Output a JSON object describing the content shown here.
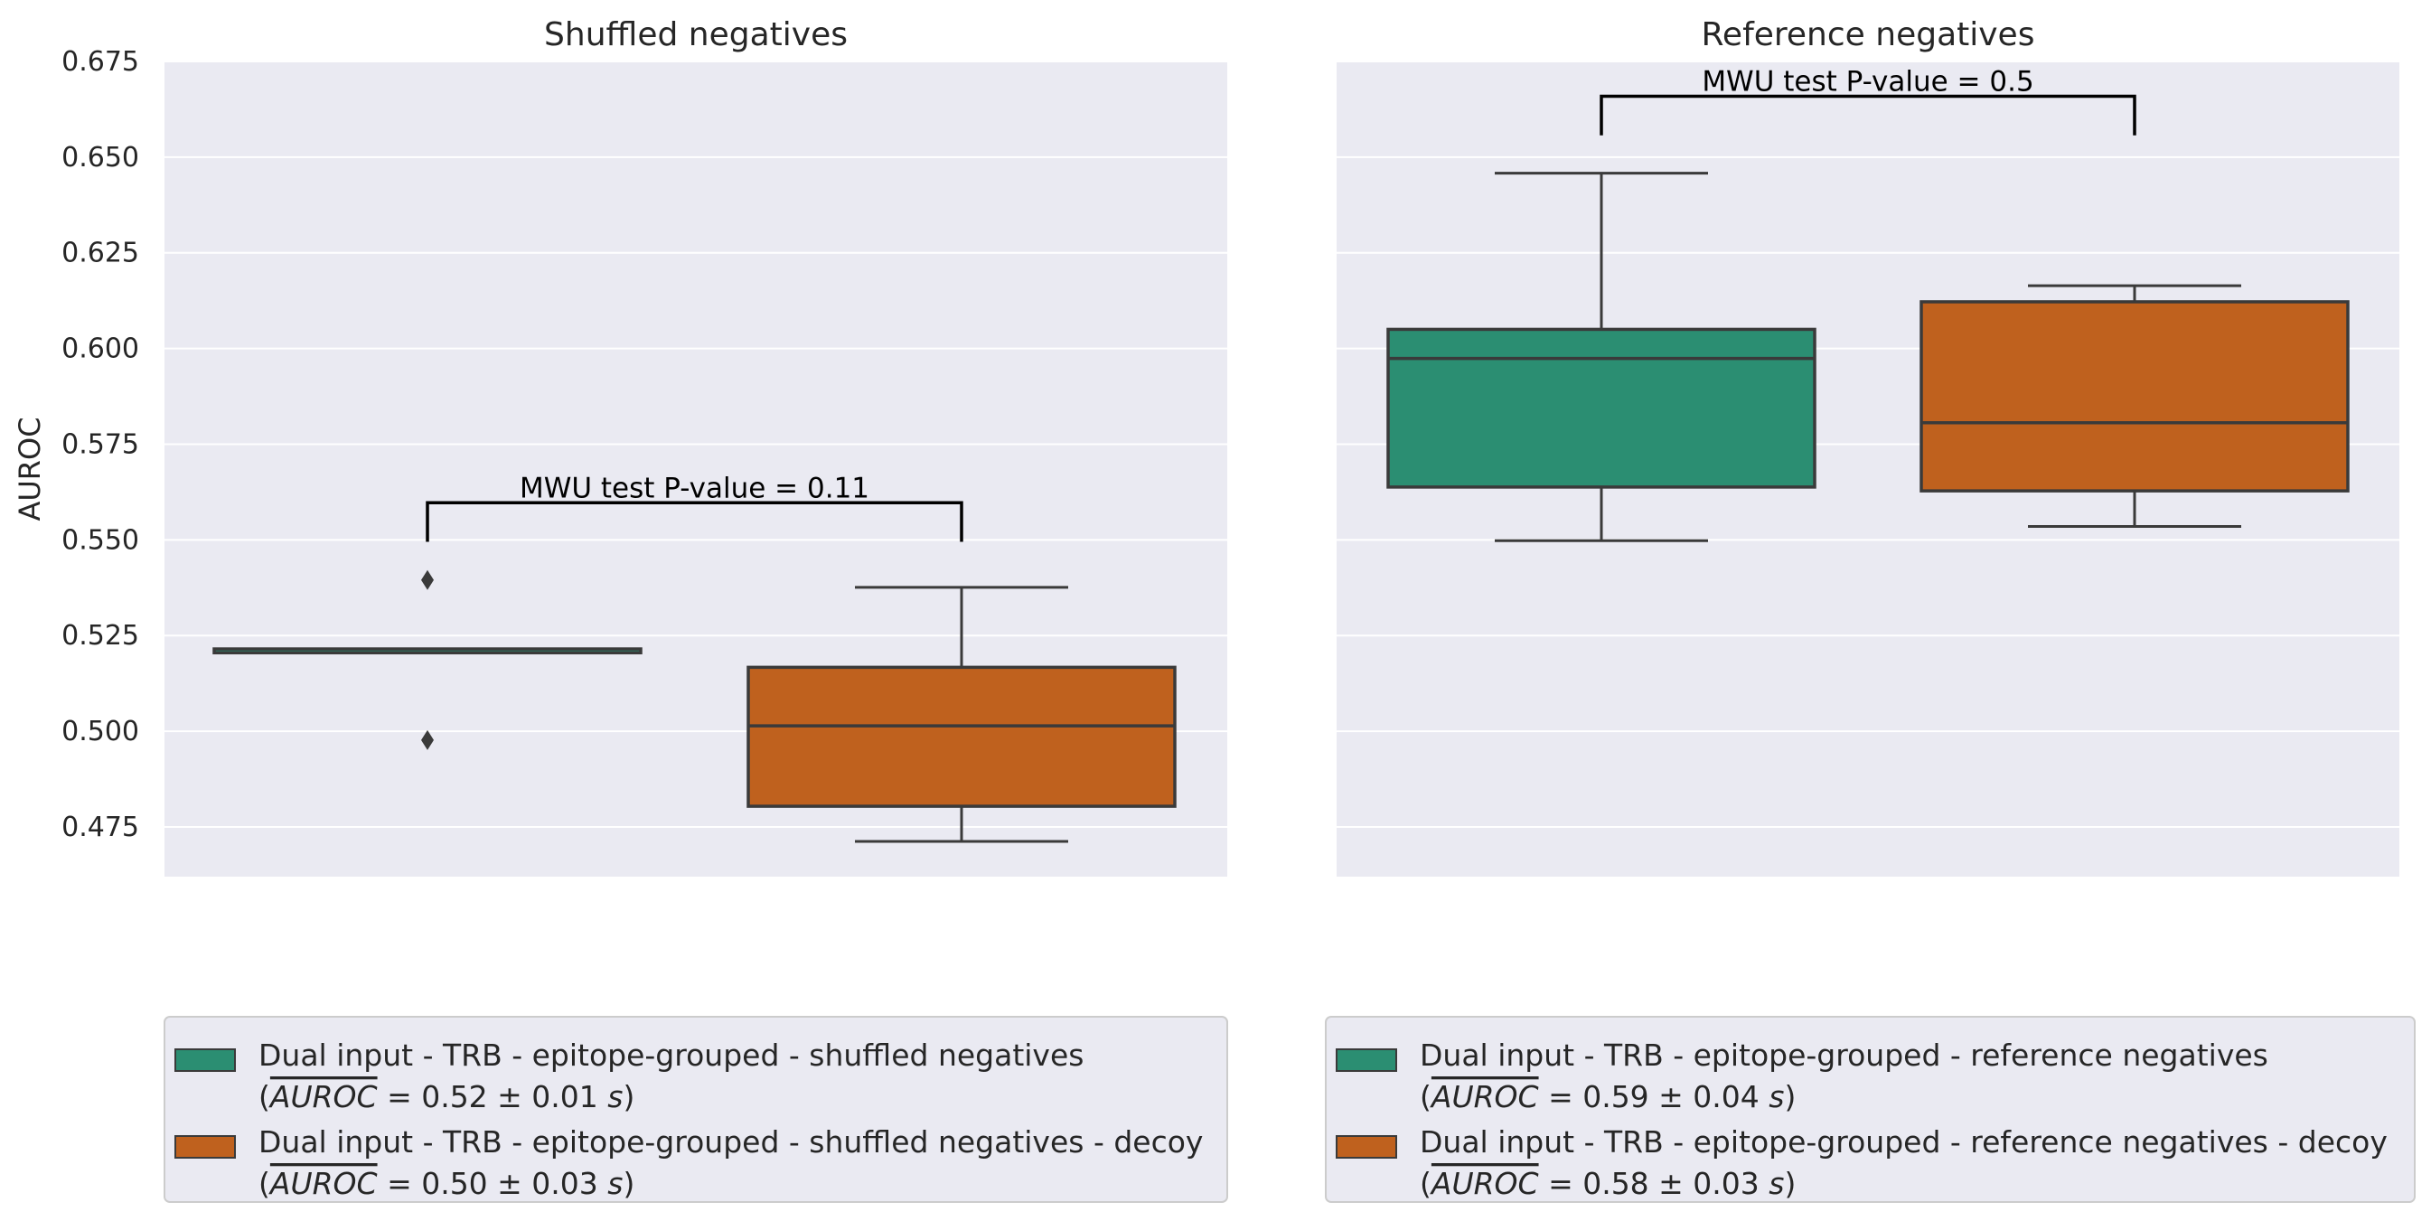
{
  "chart_data": [
    {
      "type": "box",
      "title": "Shuffled negatives",
      "ylabel": "AUROC",
      "ylim": [
        0.462,
        0.675
      ],
      "yticks": [
        "0.475",
        "0.500",
        "0.525",
        "0.550",
        "0.575",
        "0.600",
        "0.625",
        "0.650",
        "0.675"
      ],
      "grid": true,
      "series": [
        {
          "name": "Dual input - TRB - epitope-grouped - shuffled negatives",
          "legend_stat": "= 0.52 ± 0.01",
          "color": "#2b8e72",
          "whisker_low": 0.5205,
          "q1": 0.5205,
          "median": 0.5205,
          "q3": 0.5215,
          "whisker_high": 0.5215,
          "outliers": [
            0.5395,
            0.4977
          ]
        },
        {
          "name": "Dual input - TRB - epitope-grouped - shuffled negatives - decoy",
          "legend_stat": "= 0.50 ± 0.03",
          "color": "#bf611e",
          "whisker_low": 0.4712,
          "q1": 0.4804,
          "median": 0.5014,
          "q3": 0.5167,
          "whisker_high": 0.5376,
          "outliers": []
        }
      ],
      "annotation": {
        "text": "MWU test P-value = 0.11",
        "y_bracket": 0.5597,
        "y_leg": 0.5495
      }
    },
    {
      "type": "box",
      "title": "Reference negatives",
      "ylim": [
        0.462,
        0.675
      ],
      "grid": true,
      "series": [
        {
          "name": "Dual input - TRB - epitope-grouped - reference negatives",
          "legend_stat": "= 0.59 ± 0.04",
          "color": "#2b8e72",
          "whisker_low": 0.5498,
          "q1": 0.5638,
          "median": 0.5974,
          "q3": 0.605,
          "whisker_high": 0.6458,
          "outliers": []
        },
        {
          "name": "Dual input - TRB - epitope-grouped - reference negatives - decoy",
          "legend_stat": "= 0.58 ± 0.03",
          "color": "#bf611e",
          "whisker_low": 0.5535,
          "q1": 0.5628,
          "median": 0.5806,
          "q3": 0.6122,
          "whisker_high": 0.6164,
          "outliers": []
        }
      ],
      "annotation": {
        "text": "MWU test P-value = 0.5",
        "y_bracket": 0.6659,
        "y_leg": 0.6557
      }
    }
  ],
  "legend": {
    "stat_label": "AUROC",
    "stat_unit": "s",
    "open_paren": "(",
    "close_paren": ")"
  },
  "colors": {
    "plot_bg": "#eaeaf2",
    "grid": "#ffffff",
    "box_edge": "#3a3a3a"
  }
}
